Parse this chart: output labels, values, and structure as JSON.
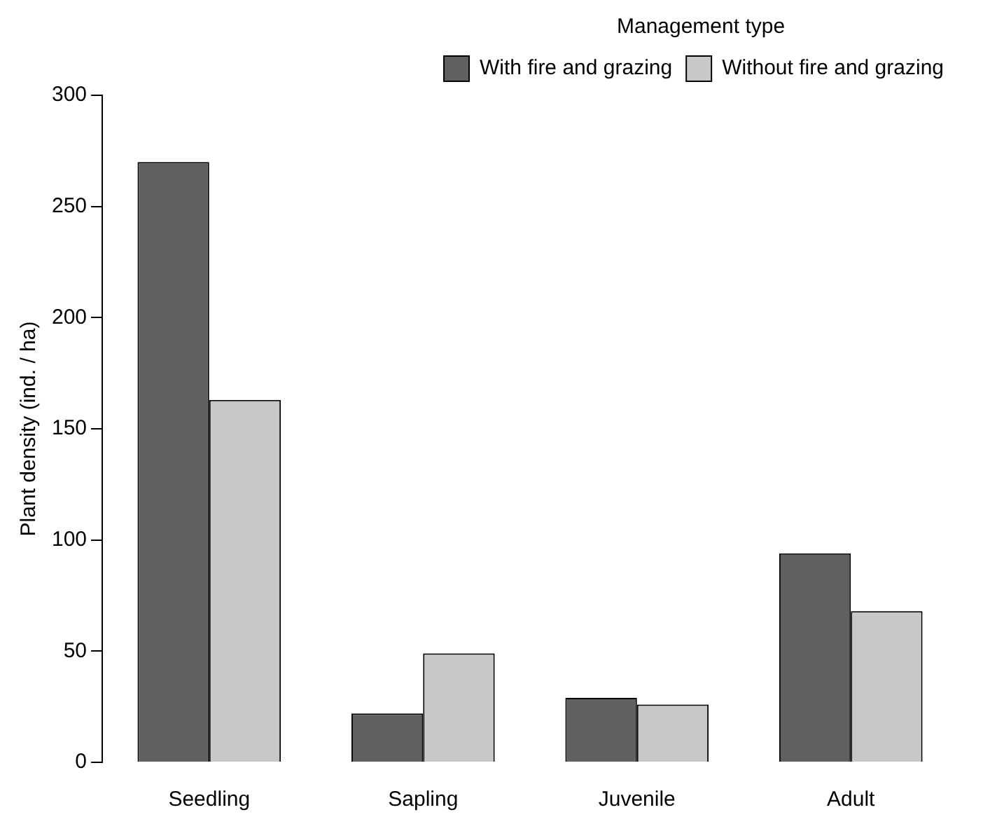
{
  "chart_data": {
    "type": "bar",
    "ylabel": "Plant density (ind. / ha)",
    "legend_title": "Management type",
    "categories": [
      "Seedling",
      "Sapling",
      "Juvenile",
      "Adult"
    ],
    "series": [
      {
        "name": "With fire and grazing",
        "color": "#606060",
        "values": [
          270,
          22,
          29,
          94
        ]
      },
      {
        "name": "Without fire and grazing",
        "color": "#c8c8c8",
        "values": [
          163,
          49,
          26,
          68
        ]
      }
    ],
    "ylim": [
      0,
      300
    ],
    "yticks": [
      0,
      50,
      100,
      150,
      200,
      250,
      300
    ],
    "grid": false,
    "legend": "top right"
  }
}
